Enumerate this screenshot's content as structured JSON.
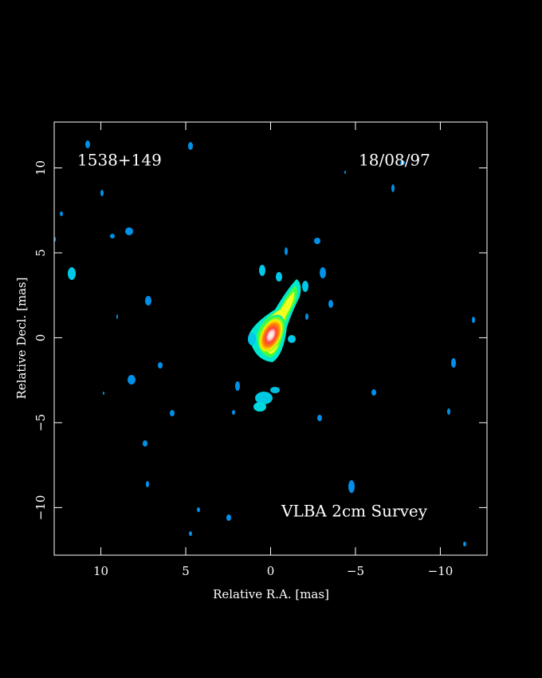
{
  "chart_data": {
    "type": "image",
    "annotations": [
      "1538+149",
      "18/08/97",
      "VLBA 2cm Survey"
    ],
    "xlabel": "Relative R.A. [mas]",
    "ylabel": "Relative Decl. [mas]",
    "xlim": [
      12.75,
      -12.75
    ],
    "ylim": [
      -12.8,
      12.7
    ],
    "xticks": [
      10,
      5,
      0,
      {
        "value": -5,
        "label": "−5"
      },
      {
        "value": -10,
        "label": "−10"
      }
    ],
    "yticks": [
      {
        "value": -10,
        "label": "−10"
      },
      {
        "value": -5,
        "label": "−5"
      },
      0,
      5,
      10
    ],
    "background": "#000000",
    "frame_color": "#ffffff"
  }
}
